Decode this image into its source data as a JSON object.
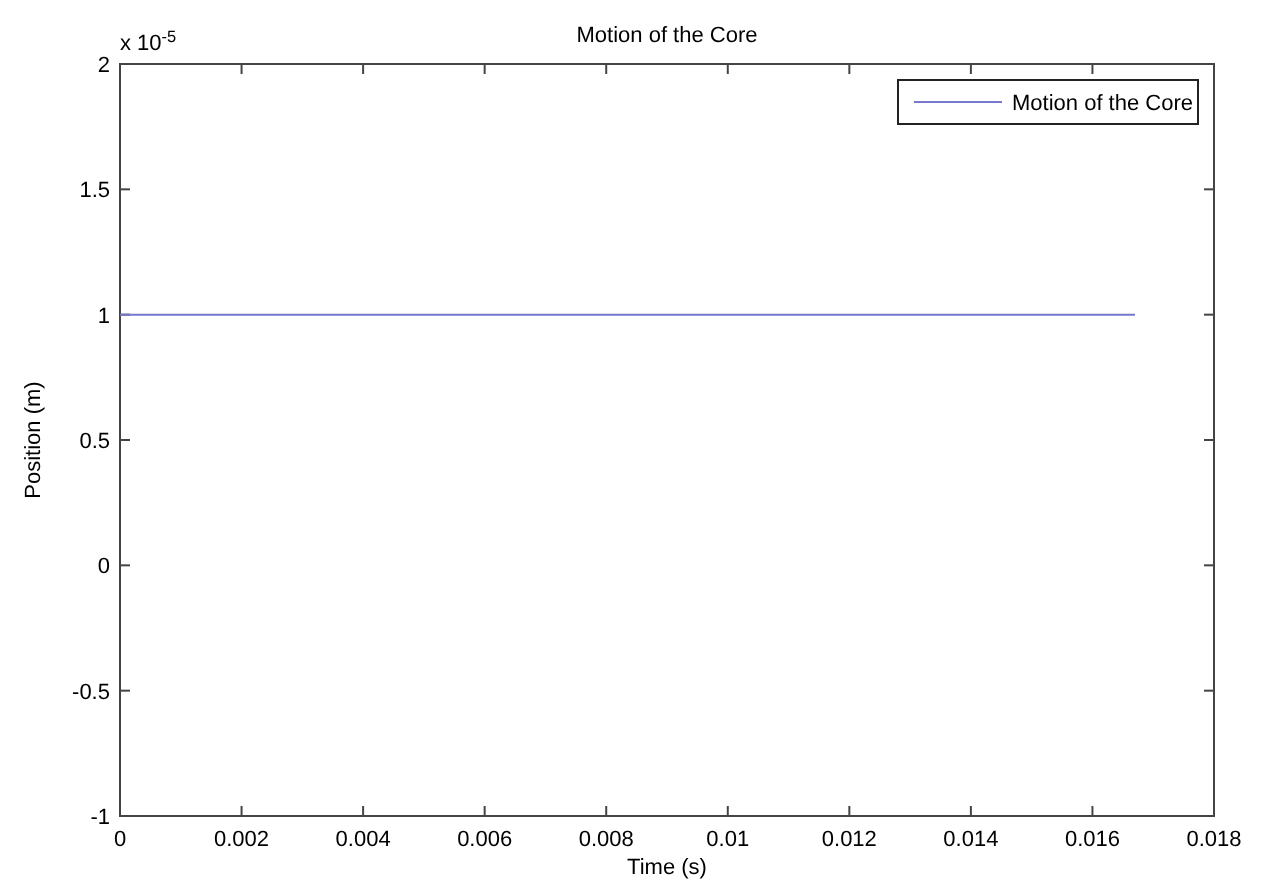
{
  "chart_data": {
    "type": "line",
    "title": "Motion of the Core",
    "xlabel": "Time (s)",
    "ylabel": "Position (m)",
    "annotations": [
      "x 10$^{-5}$"
    ],
    "x": [
      0,
      0.0167
    ],
    "series": [
      {
        "name": "Motion of the Core",
        "color": "#7777cc",
        "values": [
          1,
          1
        ]
      }
    ],
    "xlim": [
      0,
      0.018
    ],
    "xticks": [
      0,
      0.002,
      0.004,
      0.006,
      0.008,
      0.01,
      0.012,
      0.014,
      0.016,
      0.018
    ],
    "ylim": [
      -1,
      2
    ],
    "yticks": [
      -1,
      -0.5,
      0,
      0.5,
      1,
      1.5,
      2
    ],
    "grid": false,
    "legend": "top right",
    "marker": "none",
    "line_style": "solid"
  }
}
